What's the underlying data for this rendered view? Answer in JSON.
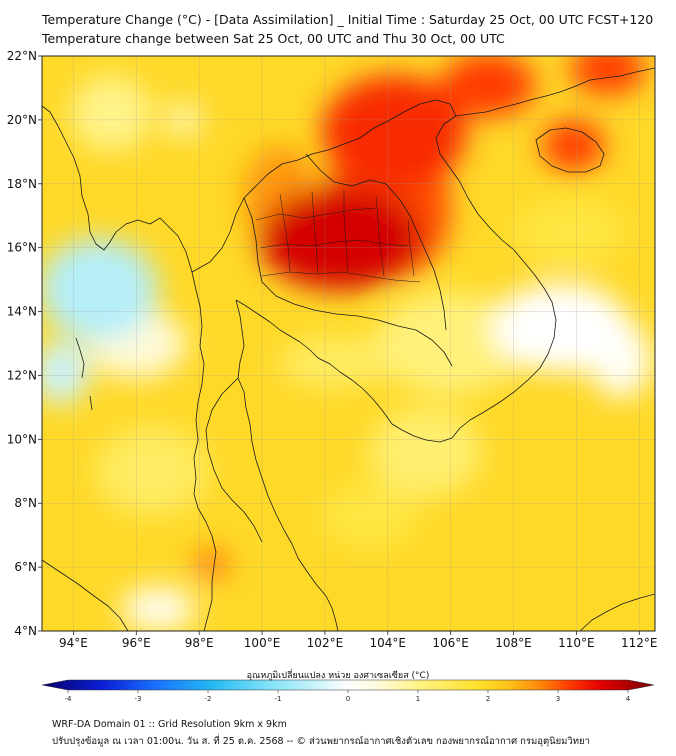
{
  "title": {
    "line1": "Temperature Change (°C) - [Data Assimilation] _ Initial Time : Saturday 25 Oct, 00 UTC FCST+120",
    "line2": "Temperature change between Sat 25 Oct, 00 UTC and Thu 30 Oct, 00 UTC"
  },
  "map": {
    "lat_range": [
      4,
      22
    ],
    "lon_range": [
      93,
      112.5
    ],
    "lat_ticks": [
      {
        "value": 4,
        "label": "4°N"
      },
      {
        "value": 6,
        "label": "6°N"
      },
      {
        "value": 8,
        "label": "8°N"
      },
      {
        "value": 10,
        "label": "10°N"
      },
      {
        "value": 12,
        "label": "12°N"
      },
      {
        "value": 14,
        "label": "14°N"
      },
      {
        "value": 16,
        "label": "16°N"
      },
      {
        "value": 18,
        "label": "18°N"
      },
      {
        "value": 20,
        "label": "20°N"
      },
      {
        "value": 22,
        "label": "22°N"
      }
    ],
    "lon_ticks": [
      {
        "value": 94,
        "label": "94°E"
      },
      {
        "value": 96,
        "label": "96°E"
      },
      {
        "value": 98,
        "label": "98°E"
      },
      {
        "value": 100,
        "label": "100°E"
      },
      {
        "value": 102,
        "label": "102°E"
      },
      {
        "value": 104,
        "label": "104°E"
      },
      {
        "value": 106,
        "label": "106°E"
      },
      {
        "value": 108,
        "label": "108°E"
      },
      {
        "value": 110,
        "label": "110°E"
      },
      {
        "value": 112,
        "label": "112°E"
      }
    ],
    "gridlines": true,
    "background_value": 1.8,
    "blobs": [
      {
        "lon": 102.5,
        "lat": 16.3,
        "rlon": 2.6,
        "rlat": 1.6,
        "value": 1.6
      },
      {
        "lon": 104.0,
        "lat": 17.2,
        "rlon": 2.0,
        "rlat": 2.2,
        "value": 1.0
      },
      {
        "lon": 104.2,
        "lat": 19.6,
        "rlon": 2.3,
        "rlat": 1.8,
        "value": 1.2
      },
      {
        "lon": 107.2,
        "lat": 21.1,
        "rlon": 1.5,
        "rlat": 1.0,
        "value": 1.1
      },
      {
        "lon": 111.0,
        "lat": 21.6,
        "rlon": 1.2,
        "rlat": 0.8,
        "value": 1.1
      },
      {
        "lon": 100.6,
        "lat": 17.6,
        "rlon": 1.2,
        "rlat": 1.6,
        "value": 0.6
      },
      {
        "lon": 109.9,
        "lat": 19.2,
        "rlon": 1.0,
        "rlat": 0.8,
        "value": 1.1
      },
      {
        "lon": 98.4,
        "lat": 6.1,
        "rlon": 0.55,
        "rlat": 0.45,
        "value": 0.8
      },
      {
        "lon": 102.3,
        "lat": 12.4,
        "rlon": 1.8,
        "rlat": 0.8,
        "value": -0.6
      },
      {
        "lon": 94.8,
        "lat": 14.7,
        "rlon": 1.9,
        "rlat": 1.6,
        "value": -2.4
      },
      {
        "lon": 93.6,
        "lat": 12.1,
        "rlon": 0.9,
        "rlat": 1.0,
        "value": -2.2
      },
      {
        "lon": 96.0,
        "lat": 13.0,
        "rlon": 1.6,
        "rlat": 1.1,
        "value": -1.4
      },
      {
        "lon": 106.0,
        "lat": 13.0,
        "rlon": 2.4,
        "rlat": 1.6,
        "value": -0.8
      },
      {
        "lon": 109.5,
        "lat": 13.5,
        "rlon": 2.2,
        "rlat": 1.4,
        "value": -1.8
      },
      {
        "lon": 111.4,
        "lat": 12.5,
        "rlon": 1.0,
        "rlat": 1.2,
        "value": -1.7
      },
      {
        "lon": 105.2,
        "lat": 9.6,
        "rlon": 1.8,
        "rlat": 1.4,
        "value": -0.7
      },
      {
        "lon": 103.4,
        "lat": 7.6,
        "rlon": 1.6,
        "rlat": 1.0,
        "value": -0.3
      },
      {
        "lon": 96.7,
        "lat": 4.7,
        "rlon": 1.2,
        "rlat": 0.7,
        "value": -1.6
      },
      {
        "lon": 95.2,
        "lat": 20.2,
        "rlon": 1.3,
        "rlat": 1.2,
        "value": -0.9
      },
      {
        "lon": 97.5,
        "lat": 20.0,
        "rlon": 0.6,
        "rlat": 0.6,
        "value": -1.1
      },
      {
        "lon": 109.8,
        "lat": 16.5,
        "rlon": 1.8,
        "rlat": 1.0,
        "value": -0.3
      },
      {
        "lon": 96.5,
        "lat": 9.0,
        "rlon": 1.8,
        "rlat": 1.4,
        "value": -0.6
      }
    ]
  },
  "colorbar": {
    "label": "อุณหภูมิเปลี่ยนแปลง หน่วย องศาเซลเซียส (°C)",
    "min": -4,
    "max": 4,
    "ticks": [
      {
        "value": -4,
        "label": "-4"
      },
      {
        "value": -3,
        "label": "-3"
      },
      {
        "value": -2,
        "label": "-2"
      },
      {
        "value": -1,
        "label": "-1"
      },
      {
        "value": 0,
        "label": "0"
      },
      {
        "value": 1,
        "label": "1"
      },
      {
        "value": 2,
        "label": "2"
      },
      {
        "value": 3,
        "label": "3"
      },
      {
        "value": 4,
        "label": "4"
      }
    ],
    "stops": [
      {
        "value": -4,
        "color": "#08006b"
      },
      {
        "value": -3.2,
        "color": "#0a1fd6"
      },
      {
        "value": -2.5,
        "color": "#1a72ff"
      },
      {
        "value": -1.8,
        "color": "#22b8f2"
      },
      {
        "value": -1.0,
        "color": "#86e3f7"
      },
      {
        "value": -0.3,
        "color": "#d8f6fb"
      },
      {
        "value": 0,
        "color": "#ffffff"
      },
      {
        "value": 0.35,
        "color": "#fffbe0"
      },
      {
        "value": 1.0,
        "color": "#fff17a"
      },
      {
        "value": 1.7,
        "color": "#ffe12c"
      },
      {
        "value": 2.1,
        "color": "#ffc21a"
      },
      {
        "value": 2.5,
        "color": "#ff8a0a"
      },
      {
        "value": 2.9,
        "color": "#ff3a00"
      },
      {
        "value": 3.3,
        "color": "#e30000"
      },
      {
        "value": 4,
        "color": "#7a0000"
      }
    ]
  },
  "footer": {
    "line1": "WRF-DA Domain 01 :: Grid Resolution 9km x 9km",
    "line2": "ปรับปรุงข้อมูล ณ เวลา 01:00น. วัน ส. ที่ 25 ต.ค. 2568 -- © ส่วนพยากรณ์อากาศเชิงตัวเลข กองพยากรณ์อากาศ กรมอุตุนิยมวิทยา"
  }
}
